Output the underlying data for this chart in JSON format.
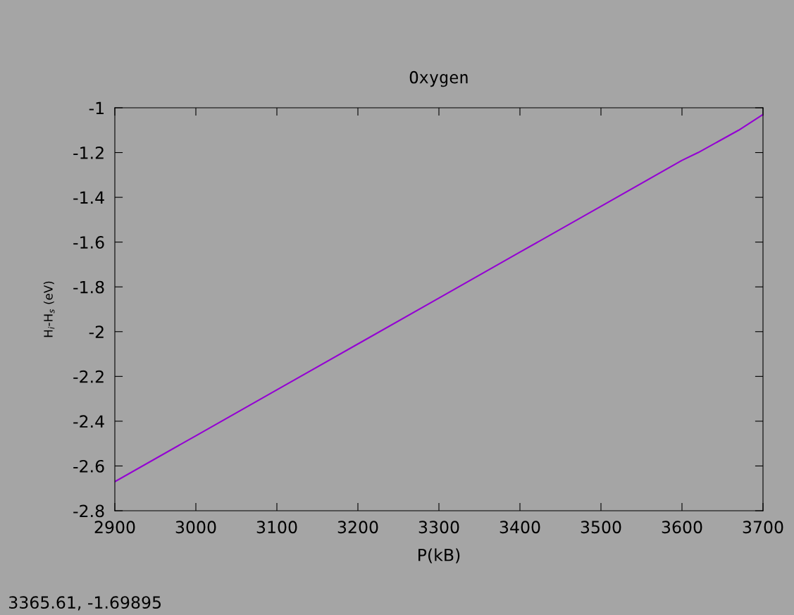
{
  "chart_data": {
    "type": "line",
    "title": "Oxygen",
    "xlabel": "P(kB)",
    "ylabel": "H$_{i}$-H$_{s}$ (eV)",
    "annotations": [
      "3365.61, -1.69895"
    ],
    "x": [
      2900,
      3000,
      3100,
      3200,
      3300,
      3400,
      3500,
      3600,
      3620,
      3650,
      3670,
      3700
    ],
    "series": [
      {
        "color": "#9400d3",
        "values": [
          -2.67,
          -2.465,
          -2.26,
          -2.055,
          -1.85,
          -1.645,
          -1.44,
          -1.235,
          -1.2,
          -1.14,
          -1.1,
          -1.03
        ]
      }
    ],
    "xlim": [
      2900,
      3700
    ],
    "xticks": [
      2900,
      3000,
      3100,
      3200,
      3300,
      3400,
      3500,
      3600,
      3700
    ],
    "ylim": [
      -2.8,
      -1
    ],
    "yticks": [
      -2.8,
      -2.6,
      -2.4,
      -2.2,
      -2,
      -1.8,
      -1.6,
      -1.4,
      -1.2,
      -1
    ],
    "grid": false,
    "legend": false,
    "marker": "none",
    "line_style": "solid"
  }
}
